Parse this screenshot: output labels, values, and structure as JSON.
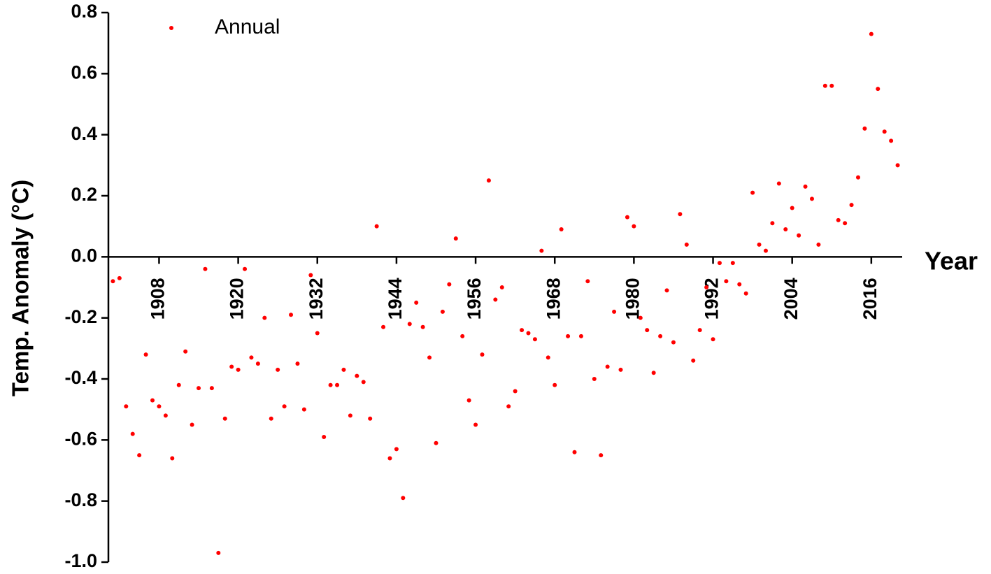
{
  "chart_data": {
    "type": "scatter",
    "x_label": "Year",
    "y_label": "Temp. Anomaly (°C)",
    "legend_corner": "top-left",
    "series": [
      {
        "name": "Annual",
        "color": "#ff0000",
        "x": [
          1901,
          1902,
          1903,
          1904,
          1905,
          1906,
          1907,
          1908,
          1909,
          1910,
          1911,
          1912,
          1913,
          1914,
          1915,
          1916,
          1917,
          1918,
          1919,
          1920,
          1921,
          1922,
          1923,
          1924,
          1925,
          1926,
          1927,
          1928,
          1929,
          1930,
          1931,
          1932,
          1933,
          1934,
          1935,
          1936,
          1937,
          1938,
          1939,
          1940,
          1941,
          1942,
          1943,
          1944,
          1945,
          1946,
          1947,
          1948,
          1949,
          1950,
          1951,
          1952,
          1953,
          1954,
          1955,
          1956,
          1957,
          1958,
          1959,
          1960,
          1961,
          1962,
          1963,
          1964,
          1965,
          1966,
          1967,
          1968,
          1969,
          1970,
          1971,
          1972,
          1973,
          1974,
          1975,
          1976,
          1977,
          1978,
          1979,
          1980,
          1981,
          1982,
          1983,
          1984,
          1985,
          1986,
          1987,
          1988,
          1989,
          1990,
          1991,
          1992,
          1993,
          1994,
          1995,
          1996,
          1997,
          1998,
          1999,
          2000,
          2001,
          2002,
          2003,
          2004,
          2005,
          2006,
          2007,
          2008,
          2009,
          2010,
          2011,
          2012,
          2013,
          2014,
          2015,
          2016,
          2017,
          2018,
          2019,
          2020
        ],
        "values": [
          -0.08,
          -0.07,
          -0.49,
          -0.58,
          -0.65,
          -0.32,
          -0.47,
          -0.49,
          -0.52,
          -0.66,
          -0.42,
          -0.31,
          -0.55,
          -0.43,
          -0.04,
          -0.43,
          -0.97,
          -0.53,
          -0.36,
          -0.37,
          -0.04,
          -0.33,
          -0.35,
          -0.2,
          -0.53,
          -0.37,
          -0.49,
          -0.19,
          -0.35,
          -0.5,
          -0.06,
          -0.25,
          -0.59,
          -0.42,
          -0.42,
          -0.37,
          -0.52,
          -0.39,
          -0.41,
          -0.53,
          0.1,
          -0.23,
          -0.66,
          -0.63,
          -0.79,
          -0.22,
          -0.15,
          -0.23,
          -0.33,
          -0.61,
          -0.18,
          -0.09,
          0.06,
          -0.26,
          -0.47,
          -0.55,
          -0.32,
          0.25,
          -0.14,
          -0.1,
          -0.49,
          -0.44,
          -0.24,
          -0.25,
          -0.27,
          0.02,
          -0.33,
          -0.42,
          0.09,
          -0.26,
          -0.64,
          -0.26,
          -0.08,
          -0.4,
          -0.65,
          -0.36,
          -0.18,
          -0.37,
          0.13,
          0.1,
          -0.2,
          -0.24,
          -0.38,
          -0.26,
          -0.11,
          -0.28,
          0.14,
          0.04,
          -0.34,
          -0.24,
          -0.1,
          -0.27,
          -0.02,
          -0.08,
          -0.02,
          -0.09,
          -0.12,
          0.21,
          0.04,
          0.02,
          0.11,
          0.24,
          0.09,
          0.16,
          0.07,
          0.23,
          0.19,
          0.04,
          0.56,
          0.56,
          0.12,
          0.11,
          0.17,
          0.26,
          0.42,
          0.73,
          0.55,
          0.41,
          0.38,
          0.3
        ]
      }
    ],
    "xlim": [
      1900,
      2021
    ],
    "xticks": [
      1908,
      1920,
      1932,
      1944,
      1956,
      1968,
      1980,
      1992,
      2004,
      2016
    ],
    "ylim": [
      -1.0,
      0.8
    ],
    "yticks": [
      0.8,
      0.6,
      0.4,
      0.2,
      {
        "value": 0,
        "label": "0.0"
      },
      -0.2,
      -0.4,
      -0.6,
      -0.8,
      {
        "value": -1.0,
        "label": "-1.0"
      }
    ]
  }
}
